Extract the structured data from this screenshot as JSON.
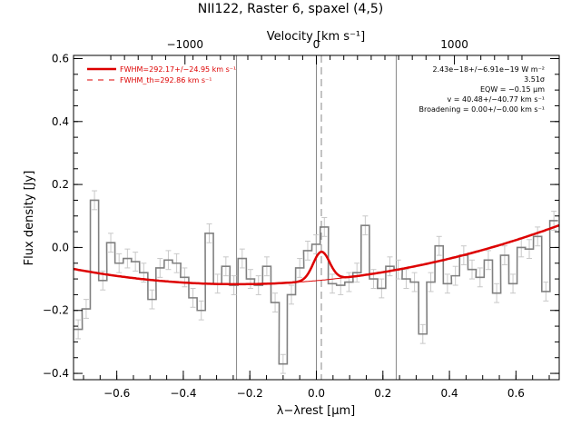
{
  "chart_data": {
    "type": "line",
    "title": "NII122, Raster 6, spaxel (4,5)",
    "xlabel": "λ−λrest [μm]",
    "ylabel": "Flux density [Jy]",
    "top_axis_label": "Velocity [km s⁻¹]",
    "xlim": [
      -0.73,
      0.73
    ],
    "ylim": [
      -0.42,
      0.61
    ],
    "x_ticks": [
      -0.6,
      -0.4,
      -0.2,
      0.0,
      0.2,
      0.4,
      0.6
    ],
    "x_tick_labels": [
      "−0.6",
      "−0.4",
      "−0.2",
      "0.0",
      "0.2",
      "0.4",
      "0.6"
    ],
    "y_ticks": [
      -0.4,
      -0.2,
      0.0,
      0.2,
      0.4,
      0.6
    ],
    "y_tick_labels": [
      "−0.4",
      "−0.2",
      "0.0",
      "0.2",
      "0.4",
      "0.6"
    ],
    "top_ticks": [
      {
        "x": -0.395,
        "label": "−1000"
      },
      {
        "x": 0.0,
        "label": "0"
      },
      {
        "x": 0.415,
        "label": "1000"
      }
    ],
    "vertical_lines": [
      {
        "x": -0.24,
        "style": "solid"
      },
      {
        "x": 0.0,
        "style": "solid"
      },
      {
        "x": 0.24,
        "style": "solid"
      },
      {
        "x": 0.015,
        "style": "dashed"
      }
    ],
    "spectrum": {
      "name": "data",
      "style": "step",
      "color": "#808080",
      "bin_width": 0.0247,
      "x": [
        -0.716,
        -0.692,
        -0.667,
        -0.642,
        -0.618,
        -0.593,
        -0.568,
        -0.544,
        -0.519,
        -0.494,
        -0.47,
        -0.445,
        -0.42,
        -0.396,
        -0.371,
        -0.346,
        -0.322,
        -0.297,
        -0.272,
        -0.248,
        -0.223,
        -0.198,
        -0.174,
        -0.149,
        -0.124,
        -0.1,
        -0.075,
        -0.05,
        -0.026,
        -0.001,
        0.024,
        0.048,
        0.073,
        0.098,
        0.122,
        0.147,
        0.172,
        0.196,
        0.221,
        0.246,
        0.27,
        0.295,
        0.32,
        0.344,
        0.369,
        0.394,
        0.418,
        0.443,
        0.468,
        0.492,
        0.517,
        0.542,
        0.566,
        0.591,
        0.616,
        0.64,
        0.665,
        0.69,
        0.714
      ],
      "y": [
        -0.26,
        -0.195,
        0.15,
        -0.105,
        0.015,
        -0.05,
        -0.035,
        -0.045,
        -0.08,
        -0.165,
        -0.065,
        -0.04,
        -0.05,
        -0.095,
        -0.16,
        -0.2,
        0.045,
        -0.115,
        -0.06,
        -0.12,
        -0.035,
        -0.1,
        -0.12,
        -0.06,
        -0.175,
        -0.37,
        -0.15,
        -0.065,
        -0.01,
        0.01,
        0.065,
        -0.115,
        -0.12,
        -0.11,
        -0.08,
        0.07,
        -0.1,
        -0.13,
        -0.06,
        -0.07,
        -0.1,
        -0.11,
        -0.275,
        -0.11,
        0.005,
        -0.115,
        -0.09,
        -0.025,
        -0.07,
        -0.095,
        -0.04,
        -0.145,
        -0.025,
        -0.115,
        0.0,
        -0.005,
        0.035,
        -0.14,
        0.085
      ],
      "err": 0.03
    },
    "fits": [
      {
        "name": "FWHM=292.17+/−24.95 km s⁻¹",
        "style": "solid",
        "color": "#dd0000",
        "baseline": {
          "c0": -0.113,
          "c1": 0.055,
          "c2": 0.2,
          "center": -0.1
        },
        "gaussian": {
          "amplitude": 0.0905,
          "center": 0.015,
          "fwhm": 0.058
        }
      },
      {
        "name": "FWHM_th=292.86 km s⁻¹",
        "style": "dashed",
        "color": "#dd0000"
      }
    ],
    "legend_position": "top-left",
    "annotations": [
      "2.43e−18+/−6.91e−19 W m⁻²",
      "3.51σ",
      "EQW = −0.15 μm",
      "v = 40.48+/−40.77 km s⁻¹",
      "Broadening = 0.00+/−0.00 km s⁻¹"
    ],
    "grid": false
  }
}
